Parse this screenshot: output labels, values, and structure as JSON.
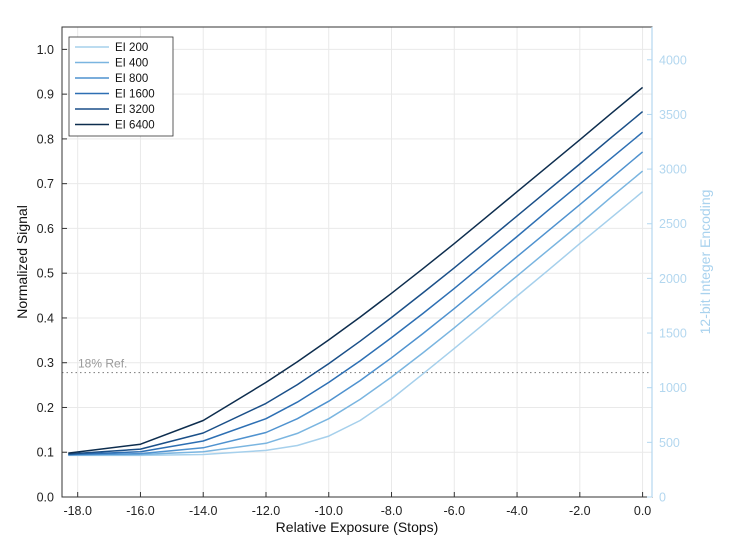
{
  "chart_data": {
    "type": "line",
    "title": "",
    "xlabel": "Relative Exposure (Stops)",
    "ylabel": "Normalized Signal",
    "y2label": "12-bit Integer Encoding",
    "xlim": [
      -18.5,
      0.3
    ],
    "ylim": [
      0,
      1.05
    ],
    "y2lim": [
      0,
      4300
    ],
    "x_ticks": [
      -18,
      -16,
      -14,
      -12,
      -10,
      -8,
      -6,
      -4,
      -2,
      0
    ],
    "x_tick_labels": [
      "-18.0",
      "-16.0",
      "-14.0",
      "-12.0",
      "-10.0",
      "-8.0",
      "-6.0",
      "-4.0",
      "-2.0",
      "0.0"
    ],
    "y_ticks": [
      0,
      0.1,
      0.2,
      0.3,
      0.4,
      0.5,
      0.6,
      0.7,
      0.8,
      0.9,
      1.0
    ],
    "y_tick_labels": [
      "0.0",
      "0.1",
      "0.2",
      "0.3",
      "0.4",
      "0.5",
      "0.6",
      "0.7",
      "0.8",
      "0.9",
      "1.0"
    ],
    "y2_ticks": [
      0,
      500,
      1000,
      1500,
      2000,
      2500,
      3000,
      3500,
      4000
    ],
    "y2_tick_labels": [
      "0",
      "500",
      "1000",
      "1500",
      "2000",
      "2500",
      "3000",
      "3500",
      "4000"
    ],
    "grid": true,
    "legend_position": "top-left",
    "reference_line": {
      "label": "18% Ref.",
      "y": 0.278,
      "color": "#888888",
      "style": "dotted"
    },
    "series": [
      {
        "name": "EI 200",
        "color": "#a6d0ec",
        "x": [
          -18.3,
          -16,
          -14,
          -12,
          -11,
          -10,
          -9,
          -8,
          -7,
          -6,
          -5,
          -4,
          -3,
          -2,
          -1,
          0
        ],
        "y": [
          0.093,
          0.093,
          0.095,
          0.104,
          0.115,
          0.136,
          0.171,
          0.219,
          0.275,
          0.332,
          0.39,
          0.449,
          0.507,
          0.566,
          0.624,
          0.682
        ]
      },
      {
        "name": "EI 400",
        "color": "#7ab5e0",
        "x": [
          -18.3,
          -16,
          -14,
          -12,
          -11,
          -10,
          -9,
          -8,
          -7,
          -6,
          -5,
          -4,
          -3,
          -2,
          -1,
          0
        ],
        "y": [
          0.094,
          0.095,
          0.101,
          0.12,
          0.142,
          0.175,
          0.218,
          0.268,
          0.322,
          0.378,
          0.436,
          0.494,
          0.552,
          0.61,
          0.67,
          0.728
        ]
      },
      {
        "name": "EI 800",
        "color": "#4f92cf",
        "x": [
          -18.3,
          -16,
          -14,
          -12,
          -11,
          -10,
          -9,
          -8,
          -7,
          -6,
          -5,
          -4,
          -3,
          -2,
          -1,
          0
        ],
        "y": [
          0.094,
          0.097,
          0.11,
          0.144,
          0.175,
          0.214,
          0.26,
          0.311,
          0.365,
          0.421,
          0.479,
          0.537,
          0.595,
          0.653,
          0.712,
          0.771
        ]
      },
      {
        "name": "EI 1600",
        "color": "#2d6fb3",
        "x": [
          -18.3,
          -16,
          -14,
          -12,
          -11,
          -10,
          -9,
          -8,
          -7,
          -6,
          -5,
          -4,
          -3,
          -2,
          -1,
          0
        ],
        "y": [
          0.095,
          0.101,
          0.125,
          0.175,
          0.212,
          0.256,
          0.304,
          0.356,
          0.41,
          0.466,
          0.524,
          0.582,
          0.641,
          0.699,
          0.757,
          0.815
        ]
      },
      {
        "name": "EI 3200",
        "color": "#1a4f88",
        "x": [
          -18.3,
          -16,
          -14,
          -12,
          -11,
          -10,
          -9,
          -8,
          -7,
          -6,
          -5,
          -4,
          -3,
          -2,
          -1,
          0
        ],
        "y": [
          0.096,
          0.107,
          0.143,
          0.209,
          0.251,
          0.298,
          0.348,
          0.401,
          0.456,
          0.512,
          0.57,
          0.628,
          0.686,
          0.744,
          0.803,
          0.861
        ]
      },
      {
        "name": "EI 6400",
        "color": "#0d2d4e",
        "x": [
          -18.3,
          -16,
          -14,
          -12,
          -11,
          -10,
          -9,
          -8,
          -7,
          -6,
          -5,
          -4,
          -3,
          -2,
          -1,
          0
        ],
        "y": [
          0.098,
          0.118,
          0.171,
          0.256,
          0.302,
          0.351,
          0.402,
          0.455,
          0.51,
          0.566,
          0.624,
          0.682,
          0.74,
          0.798,
          0.857,
          0.915
        ]
      }
    ]
  }
}
